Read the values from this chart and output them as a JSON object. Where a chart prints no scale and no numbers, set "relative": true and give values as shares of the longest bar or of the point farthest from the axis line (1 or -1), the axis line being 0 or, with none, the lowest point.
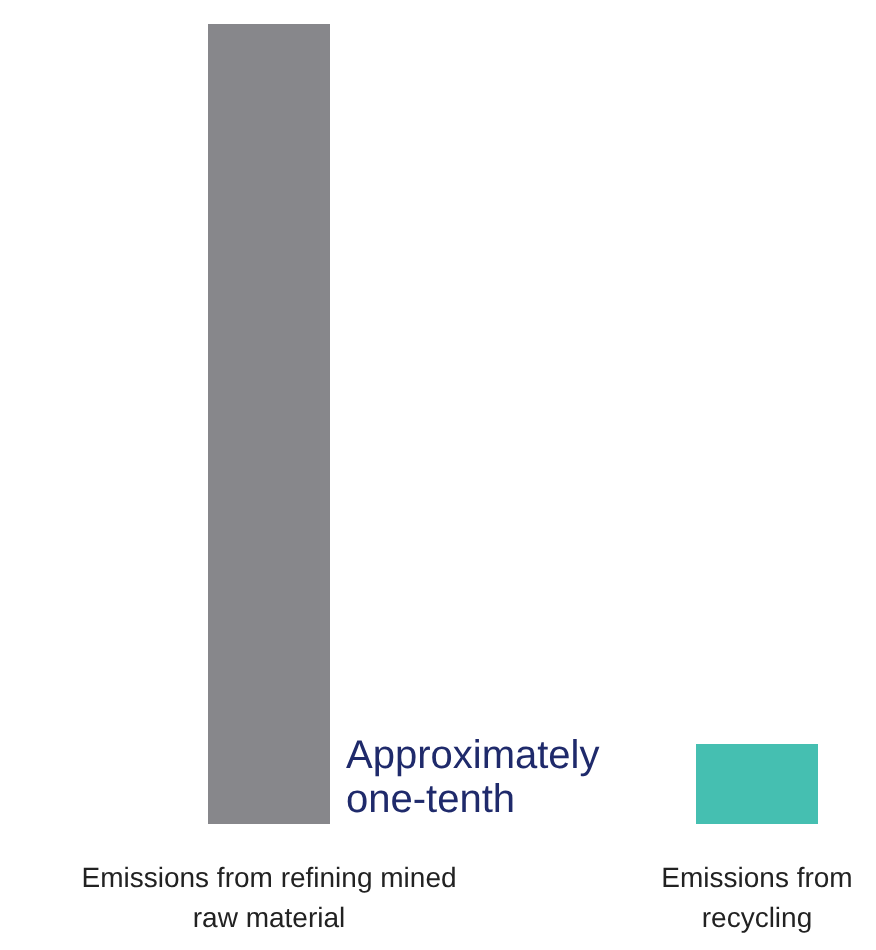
{
  "chart_data": {
    "type": "bar",
    "relative": true,
    "categories": [
      "Emissions from refining mined raw material",
      "Emissions from recycling"
    ],
    "values": [
      1,
      0.1
    ],
    "colors": [
      "#87878b",
      "#45bfb1"
    ],
    "annotations": [
      "Approximately one-tenth"
    ]
  }
}
